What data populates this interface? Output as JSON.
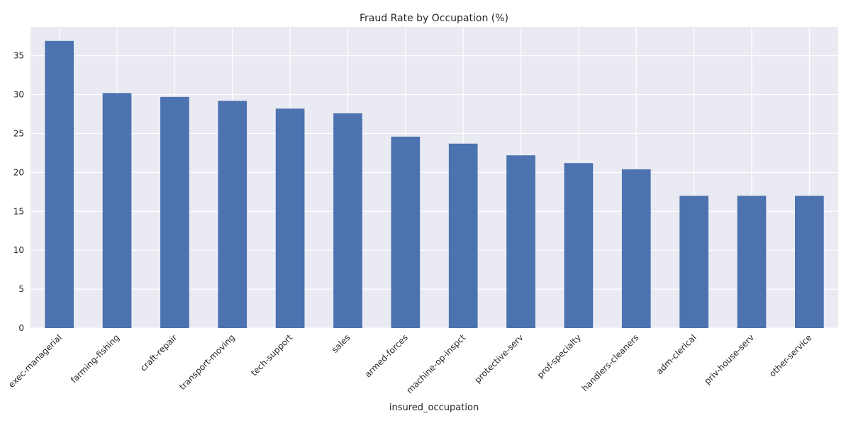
{
  "chart_data": {
    "type": "bar",
    "title": "Fraud Rate by Occupation (%)",
    "xlabel": "insured_occupation",
    "ylabel": "",
    "categories": [
      "exec-managerial",
      "farming-fishing",
      "craft-repair",
      "transport-moving",
      "tech-support",
      "sales",
      "armed-forces",
      "machine-op-inspct",
      "protective-serv",
      "prof-specialty",
      "handlers-cleaners",
      "adm-clerical",
      "priv-house-serv",
      "other-service"
    ],
    "values": [
      36.9,
      30.2,
      29.7,
      29.2,
      28.2,
      27.6,
      24.6,
      23.7,
      22.2,
      21.2,
      20.4,
      17.0,
      17.0,
      17.0
    ],
    "ylim": [
      0,
      38.7
    ],
    "yticks": [
      0,
      5,
      10,
      15,
      20,
      25,
      30,
      35
    ],
    "grid": true,
    "legend": "none",
    "colors": {
      "bar": "#4c72b0",
      "background": "#eaeaf2",
      "grid": "#ffffff",
      "text": "#262626"
    }
  }
}
